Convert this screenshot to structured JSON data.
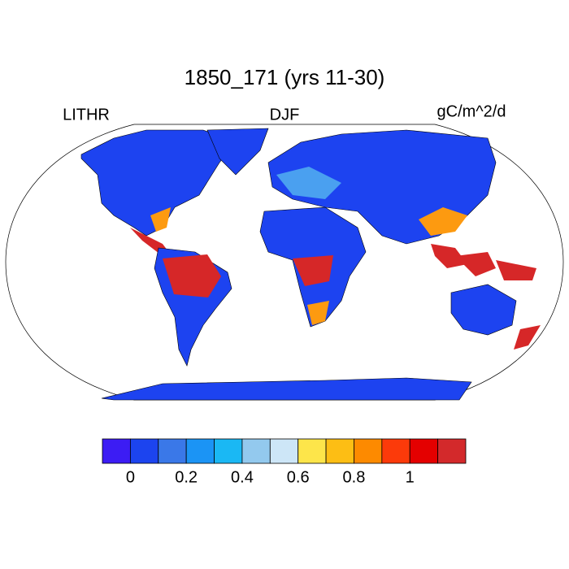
{
  "header": {
    "title": "1850_171 (yrs 11-30)",
    "left": "LITHR",
    "center": "DJF",
    "right": "gC/m^2/d"
  },
  "colorbar": {
    "colors": [
      "#3c1cf4",
      "#1c44ef",
      "#3a78e8",
      "#1b94f5",
      "#1ab8f4",
      "#93c9ee",
      "#cde6f7",
      "#fde54a",
      "#fdbe14",
      "#fd8a00",
      "#fc3a0a",
      "#e40000",
      "#d3292b"
    ],
    "xlim": [
      -0.1,
      1.2
    ],
    "ticks": [
      0,
      0.2,
      0.4,
      0.6,
      0.8,
      1
    ]
  }
}
